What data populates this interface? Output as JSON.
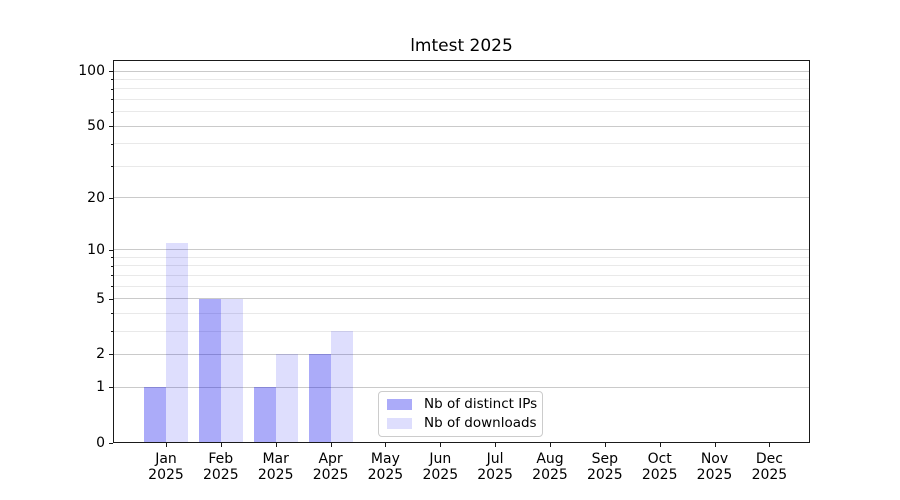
{
  "title": "lmtest 2025",
  "chart_data": {
    "type": "bar",
    "title": "lmtest 2025",
    "categories": [
      "Jan",
      "Feb",
      "Mar",
      "Apr",
      "May",
      "Jun",
      "Jul",
      "Aug",
      "Sep",
      "Oct",
      "Nov",
      "Dec"
    ],
    "x_tick_second_line": "2025",
    "series": [
      {
        "name": "Nb of distinct IPs",
        "color": "rgba(2,2,238,0.335)",
        "values": [
          1,
          5,
          1,
          2,
          0,
          0,
          0,
          0,
          0,
          0,
          0,
          0
        ]
      },
      {
        "name": "Nb of downloads",
        "color": "rgba(2,2,238,0.13)",
        "values": [
          11,
          5,
          2,
          3,
          0,
          0,
          0,
          0,
          0,
          0,
          0,
          0
        ]
      }
    ],
    "yscale": "log1p",
    "ylim": [
      0,
      115
    ],
    "y_major_ticks": [
      0,
      1,
      2,
      5,
      10,
      20,
      50,
      100
    ],
    "y_minor_ticks": [
      3,
      4,
      6,
      7,
      8,
      9,
      30,
      40,
      60,
      70,
      80,
      90
    ],
    "grid": "both",
    "legend_position": "inside-lower-center"
  },
  "colors": {
    "grid_major": "#cacaca",
    "grid_minor": "#e9e9e9",
    "spine": "#1a1a1a",
    "bar_distinct_ips_hex": "#aaaaf8",
    "bar_downloads_hex": "#dedefb"
  }
}
